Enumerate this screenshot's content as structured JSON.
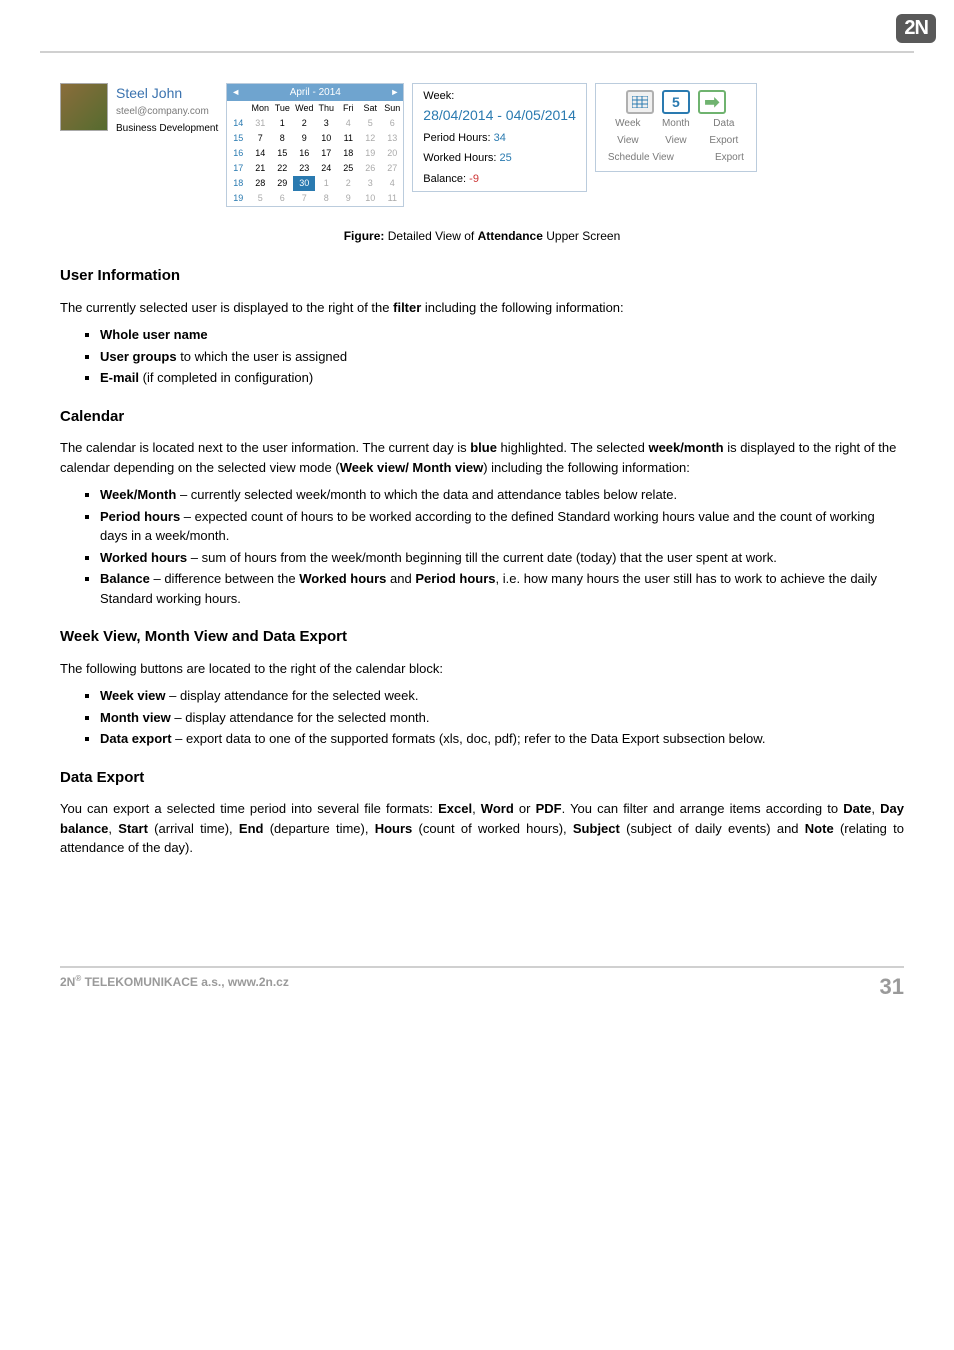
{
  "logo": "2N",
  "topline_color": "#d0d0d0",
  "userblock": {
    "name": "Steel John",
    "email": "steel@company.com",
    "group": "Business Development"
  },
  "calendar": {
    "title": "April - 2014",
    "weekdays": [
      "Mon",
      "Tue",
      "Wed",
      "Thu",
      "Fri",
      "Sat",
      "Sun"
    ],
    "rows": [
      {
        "wk": "14",
        "days": [
          "31",
          "1",
          "2",
          "3",
          "4",
          "5",
          "6"
        ],
        "muted": [
          0,
          4,
          5,
          6
        ]
      },
      {
        "wk": "15",
        "days": [
          "7",
          "8",
          "9",
          "10",
          "11",
          "12",
          "13"
        ],
        "muted": [
          5,
          6
        ]
      },
      {
        "wk": "16",
        "days": [
          "14",
          "15",
          "16",
          "17",
          "18",
          "19",
          "20"
        ],
        "muted": [
          5,
          6
        ]
      },
      {
        "wk": "17",
        "days": [
          "21",
          "22",
          "23",
          "24",
          "25",
          "26",
          "27"
        ],
        "muted": [
          5,
          6
        ]
      },
      {
        "wk": "18",
        "days": [
          "28",
          "29",
          "30",
          "1",
          "2",
          "3",
          "4"
        ],
        "today": 2,
        "muted": [
          3,
          4,
          5,
          6
        ]
      },
      {
        "wk": "19",
        "days": [
          "5",
          "6",
          "7",
          "8",
          "9",
          "10",
          "11"
        ],
        "muted": [
          0,
          1,
          2,
          3,
          4,
          5,
          6
        ]
      }
    ]
  },
  "weekinfo": {
    "title": "Week:",
    "range": "28/04/2014 - 04/05/2014",
    "period_label": "Period Hours:",
    "period_val": "34",
    "worked_label": "Worked Hours:",
    "worked_val": "25",
    "balance_label": "Balance:",
    "balance_val": "-9"
  },
  "viewblock": {
    "week_icon": "",
    "month_icon": "5",
    "data_icon": "➡",
    "week_label": "Week",
    "month_label": "Month",
    "data_label": "Data",
    "view1": "View",
    "view2": "View",
    "export1": "Export",
    "schedule": "Schedule View",
    "export2": "Export"
  },
  "caption_pre": "Figure:",
  "caption_mid": " Detailed View of ",
  "caption_bold": "Attendance",
  "caption_post": " Upper Screen",
  "sections": {
    "userinfo": {
      "heading": "User Information",
      "p1_pre": "The currently selected user is displayed to the right of the ",
      "p1_bold": "filter",
      "p1_post": " including the following information:",
      "li1": "Whole user name",
      "li2_bold": "User groups",
      "li2_rest": " to which the user is assigned",
      "li3_bold": "E-mail ",
      "li3_rest": " (if completed in configuration)"
    },
    "calendar": {
      "heading": "Calendar",
      "p_pre": "The calendar is located next to the user information. The current day is ",
      "p_b1": "blue",
      "p_mid1": " highlighted. The selected ",
      "p_b2": "week/month",
      "p_mid2": " is displayed to the right of the calendar depending on the selected view mode (",
      "p_b3": "Week view/ Month view",
      "p_post": ") including the following information:",
      "li1_b": "Week/Month ",
      "li1_r": " – currently selected week/month to which the data and attendance tables below relate.",
      "li2_b": "Period hours",
      "li2_r": " – expected count of hours to be worked according to the defined Standard working hours value and the count of working days in a week/month.",
      "li3_b": "Worked hours",
      "li3_r": " – sum of hours from the week/month beginning till the current date (today) that the user spent at work.",
      "li4_b": "Balance",
      "li4_r1": " – difference between the ",
      "li4_b2": "Worked hours",
      "li4_r2": " and ",
      "li4_b3": "Period hours",
      "li4_r3": ", i.e. how many hours the user still has to work to achieve the daily Standard working hours."
    },
    "views": {
      "heading": "Week View, Month View and Data Export",
      "p": "The following buttons are  located to the right of the calendar block:",
      "li1_b": "Week view",
      "li1_r": " – display attendance for the selected week.",
      "li2_b": "Month view",
      "li2_r": " – display attendance for the selected month.",
      "li3_b": "Data export",
      "li3_r": " – export data to one of the supported formats (xls, doc, pdf); refer to the Data Export subsection below."
    },
    "export": {
      "heading": "Data Export",
      "p_1": "You can export a selected time period into several file formats: ",
      "p_b1": "Excel",
      "p_c1": ", ",
      "p_b2": "Word",
      "p_c2": " or ",
      "p_b3": "PDF",
      "p_2": ". You can filter and arrange items according to ",
      "p_b4": "Date",
      "p_c4": ", ",
      "p_b5": "Day balance",
      "p_c5": ", ",
      "p_b6": "Start",
      "p_c6": " (arrival time), ",
      "p_b7": "End",
      "p_c7": " (departure time), ",
      "p_b8": "Hours",
      "p_c8": " (count of worked hours), ",
      "p_b9": "Subject",
      "p_c9": " (subject of daily events) and ",
      "p_b10": "Note ",
      "p_c10": " (relating to attendance of the day)."
    }
  },
  "footer": {
    "left_pre": "2N",
    "left_sup": "®",
    "left_post": " TELEKOMUNIKACE a.s., www.2n.cz",
    "page": "31"
  }
}
